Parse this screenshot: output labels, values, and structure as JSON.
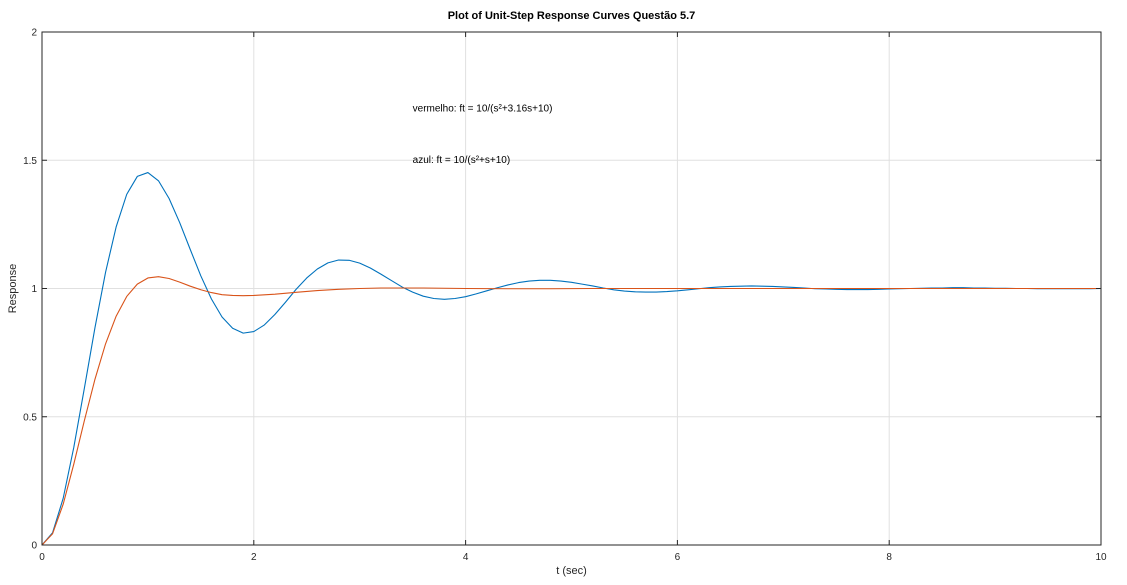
{
  "chart_data": {
    "type": "line",
    "title": "Plot of Unit-Step Response Curves Questão 5.7",
    "xlabel": "t (sec)",
    "ylabel": "Response",
    "xlim": [
      0,
      10
    ],
    "ylim": [
      0,
      2
    ],
    "xticks": [
      0,
      2,
      4,
      6,
      8,
      10
    ],
    "yticks": [
      0,
      0.5,
      1,
      1.5,
      2
    ],
    "xtick_labels": [
      "0",
      "2",
      "4",
      "6",
      "8",
      "10"
    ],
    "ytick_labels": [
      "0",
      "0.5",
      "1",
      "1.5",
      "2"
    ],
    "grid": true,
    "annotations": [
      {
        "text": "vermelho: ft = 10/(s²+3.16s+10)",
        "x": 3.5,
        "y": 1.69
      },
      {
        "text": "azul: ft = 10/(s²+s+10)",
        "x": 3.5,
        "y": 1.49
      }
    ],
    "series": [
      {
        "color": "#0072bd",
        "x": [
          0,
          0.1,
          0.2,
          0.3,
          0.4,
          0.5,
          0.6,
          0.7,
          0.8,
          0.9,
          1.0,
          1.1,
          1.2,
          1.3,
          1.4,
          1.5,
          1.6,
          1.7,
          1.8,
          1.9,
          2.0,
          2.1,
          2.2,
          2.3,
          2.4,
          2.5,
          2.6,
          2.7,
          2.8,
          2.9,
          3.0,
          3.1,
          3.2,
          3.3,
          3.4,
          3.5,
          3.6,
          3.7,
          3.8,
          3.9,
          4.0,
          4.1,
          4.2,
          4.3,
          4.4,
          4.5,
          4.6,
          4.7,
          4.8,
          4.9,
          5.0,
          5.1,
          5.2,
          5.3,
          5.4,
          5.5,
          5.6,
          5.7,
          5.8,
          5.9,
          6.0,
          6.1,
          6.2,
          6.3,
          6.4,
          6.5,
          6.6,
          6.7,
          6.8,
          6.9,
          7.0,
          7.1,
          7.2,
          7.3,
          7.4,
          7.5,
          7.6,
          7.7,
          7.8,
          7.9,
          8.0,
          8.1,
          8.2,
          8.3,
          8.4,
          8.5,
          8.6,
          8.7,
          8.8,
          8.9,
          9.0,
          9.1,
          9.2,
          9.3,
          9.4,
          9.5,
          9.6,
          9.7,
          9.8,
          9.9,
          10.0
        ],
        "values": [
          0,
          0.048,
          0.182,
          0.38,
          0.611,
          0.847,
          1.063,
          1.24,
          1.367,
          1.437,
          1.452,
          1.42,
          1.351,
          1.257,
          1.152,
          1.049,
          0.959,
          0.889,
          0.845,
          0.826,
          0.832,
          0.858,
          0.899,
          0.947,
          0.997,
          1.041,
          1.076,
          1.1,
          1.111,
          1.11,
          1.099,
          1.08,
          1.056,
          1.031,
          1.006,
          0.986,
          0.97,
          0.961,
          0.958,
          0.961,
          0.968,
          0.979,
          0.991,
          1.003,
          1.014,
          1.023,
          1.029,
          1.032,
          1.032,
          1.029,
          1.024,
          1.017,
          1.01,
          1.002,
          0.995,
          0.99,
          0.987,
          0.986,
          0.986,
          0.988,
          0.991,
          0.995,
          0.999,
          1.003,
          1.006,
          1.008,
          1.009,
          1.01,
          1.009,
          1.008,
          1.006,
          1.004,
          1.002,
          0.999,
          0.998,
          0.997,
          0.996,
          0.996,
          0.996,
          0.997,
          0.998,
          0.999,
          1.0,
          1.001,
          1.002,
          1.002,
          1.003,
          1.003,
          1.002,
          1.002,
          1.001,
          1.001,
          1.0,
          1.0,
          0.999,
          0.999,
          0.999,
          0.999,
          0.999,
          0.999,
          1.0
        ]
      },
      {
        "color": "#d95319",
        "x": [
          0,
          0.1,
          0.2,
          0.3,
          0.4,
          0.5,
          0.6,
          0.7,
          0.8,
          0.9,
          1.0,
          1.1,
          1.2,
          1.3,
          1.4,
          1.5,
          1.6,
          1.7,
          1.8,
          1.9,
          2.0,
          2.2,
          2.4,
          2.6,
          2.8,
          3.0,
          3.2,
          3.4,
          3.6,
          3.8,
          4.0,
          4.4,
          4.8,
          5.2,
          5.6,
          6.0,
          7.0,
          8.0,
          9.0,
          10.0
        ],
        "values": [
          0,
          0.044,
          0.159,
          0.315,
          0.485,
          0.646,
          0.784,
          0.892,
          0.969,
          1.017,
          1.041,
          1.046,
          1.039,
          1.025,
          1.009,
          0.995,
          0.984,
          0.976,
          0.973,
          0.972,
          0.973,
          0.978,
          0.985,
          0.992,
          0.997,
          1.0,
          1.002,
          1.002,
          1.002,
          1.001,
          1.0,
          0.999,
          0.999,
          1.0,
          1.0,
          1.0,
          1.0,
          1.0,
          1.0,
          1.0
        ]
      }
    ]
  }
}
